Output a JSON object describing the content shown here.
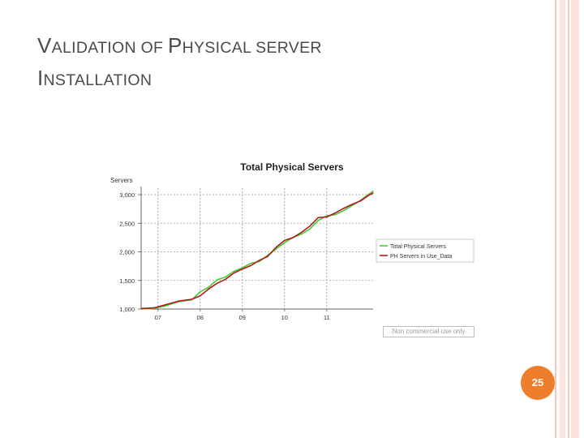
{
  "slide": {
    "title": {
      "line1": {
        "cap": "V",
        "rest": "ALIDATION OF ",
        "cap2": "P",
        "rest2": "HYSICAL SERVER"
      },
      "line2": {
        "cap": "I",
        "rest": "NSTALLATION"
      }
    },
    "watermark": "Non commercial use only",
    "slide_number": "25"
  },
  "colors": {
    "rail_pink": "#f6c6b6",
    "rail_light": "#fbe3d9",
    "accent_orange": "#ee7d2c",
    "series_green": "#44c935",
    "series_red": "#b11b1b"
  },
  "chart_data": {
    "type": "line",
    "title": "Total Physical Servers",
    "ylabel": "Servers",
    "xlabel": "",
    "ylim": [
      1000,
      3000
    ],
    "yticks": [
      {
        "value": 1000,
        "label": "1,000"
      },
      {
        "value": 1500,
        "label": "1,500"
      },
      {
        "value": 2000,
        "label": "2,000"
      },
      {
        "value": 2500,
        "label": "2,500"
      },
      {
        "value": 3000,
        "label": "3,000"
      }
    ],
    "xticks": [
      {
        "value": 2007,
        "label": "07"
      },
      {
        "value": 2008,
        "label": "08"
      },
      {
        "value": 2009,
        "label": "09"
      },
      {
        "value": 2010,
        "label": "10"
      },
      {
        "value": 2011,
        "label": "11"
      }
    ],
    "xlim": [
      2006.6,
      2012.1
    ],
    "grid": true,
    "legend_position": "right",
    "series": [
      {
        "name": "Total Physical Servers",
        "color": "#44c935",
        "x": [
          2006.6,
          2006.9,
          2007.2,
          2007.5,
          2007.8,
          2008.0,
          2008.2,
          2008.4,
          2008.6,
          2008.8,
          2009.0,
          2009.2,
          2009.4,
          2009.6,
          2009.8,
          2010.0,
          2010.2,
          2010.4,
          2010.6,
          2010.8,
          2011.0,
          2011.2,
          2011.4,
          2011.6,
          2011.8,
          2012.0,
          2012.1
        ],
        "y": [
          1000,
          1010,
          1060,
          1130,
          1160,
          1300,
          1380,
          1510,
          1560,
          1660,
          1720,
          1800,
          1830,
          1940,
          2050,
          2160,
          2250,
          2310,
          2400,
          2550,
          2630,
          2650,
          2720,
          2810,
          2900,
          3010,
          3060
        ]
      },
      {
        "name": "PH Servers in Use_Data",
        "color": "#b11b1b",
        "x": [
          2006.6,
          2006.9,
          2007.2,
          2007.5,
          2007.8,
          2008.0,
          2008.2,
          2008.4,
          2008.6,
          2008.8,
          2009.0,
          2009.2,
          2009.4,
          2009.6,
          2009.8,
          2010.0,
          2010.2,
          2010.4,
          2010.6,
          2010.8,
          2011.0,
          2011.2,
          2011.4,
          2011.6,
          2011.8,
          2012.0,
          2012.1
        ],
        "y": [
          1010,
          1020,
          1080,
          1140,
          1170,
          1230,
          1350,
          1450,
          1520,
          1630,
          1700,
          1760,
          1850,
          1920,
          2080,
          2200,
          2250,
          2340,
          2450,
          2600,
          2610,
          2680,
          2760,
          2830,
          2890,
          2990,
          3030
        ]
      }
    ]
  }
}
